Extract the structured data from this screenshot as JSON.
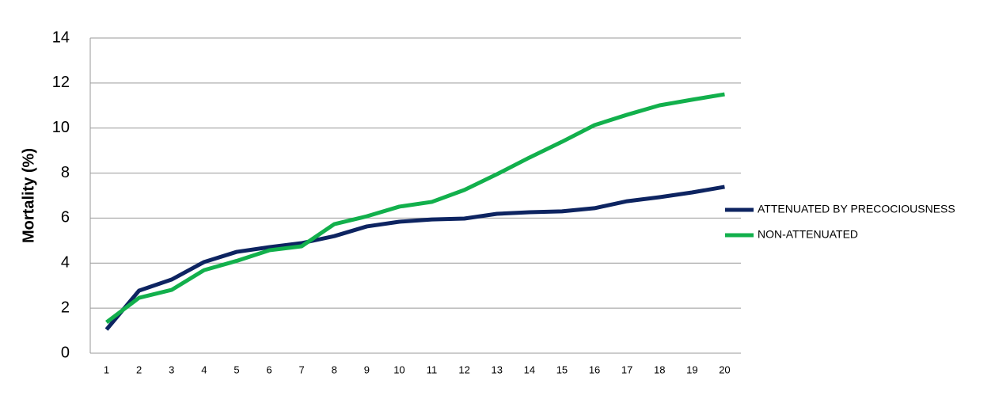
{
  "chart_data": {
    "type": "line",
    "y_label": "Mortality (%)",
    "categories": [
      "1",
      "2",
      "3",
      "4",
      "5",
      "6",
      "7",
      "8",
      "9",
      "10",
      "11",
      "12",
      "13",
      "14",
      "15",
      "16",
      "17",
      "18",
      "19",
      "20"
    ],
    "series": [
      {
        "name": "ATTENUATED BY PRECOCIOUSNESS",
        "color": "#0d2461",
        "values": [
          1.05,
          2.78,
          3.27,
          4.05,
          4.5,
          4.71,
          4.89,
          5.2,
          5.63,
          5.84,
          5.94,
          5.98,
          6.19,
          6.26,
          6.3,
          6.44,
          6.75,
          6.93,
          7.14,
          7.39
        ]
      },
      {
        "name": "NON-ATTENUATED",
        "color": "#12b04c",
        "values": [
          1.37,
          2.46,
          2.81,
          3.69,
          4.1,
          4.57,
          4.75,
          5.73,
          6.08,
          6.51,
          6.72,
          7.25,
          7.95,
          8.69,
          9.39,
          10.13,
          10.59,
          11.01,
          11.26,
          11.5
        ]
      }
    ],
    "ylim": [
      0,
      14
    ],
    "yticks": [
      0,
      2,
      4,
      6,
      8,
      10,
      12,
      14
    ],
    "grid": true,
    "legend": "right"
  }
}
